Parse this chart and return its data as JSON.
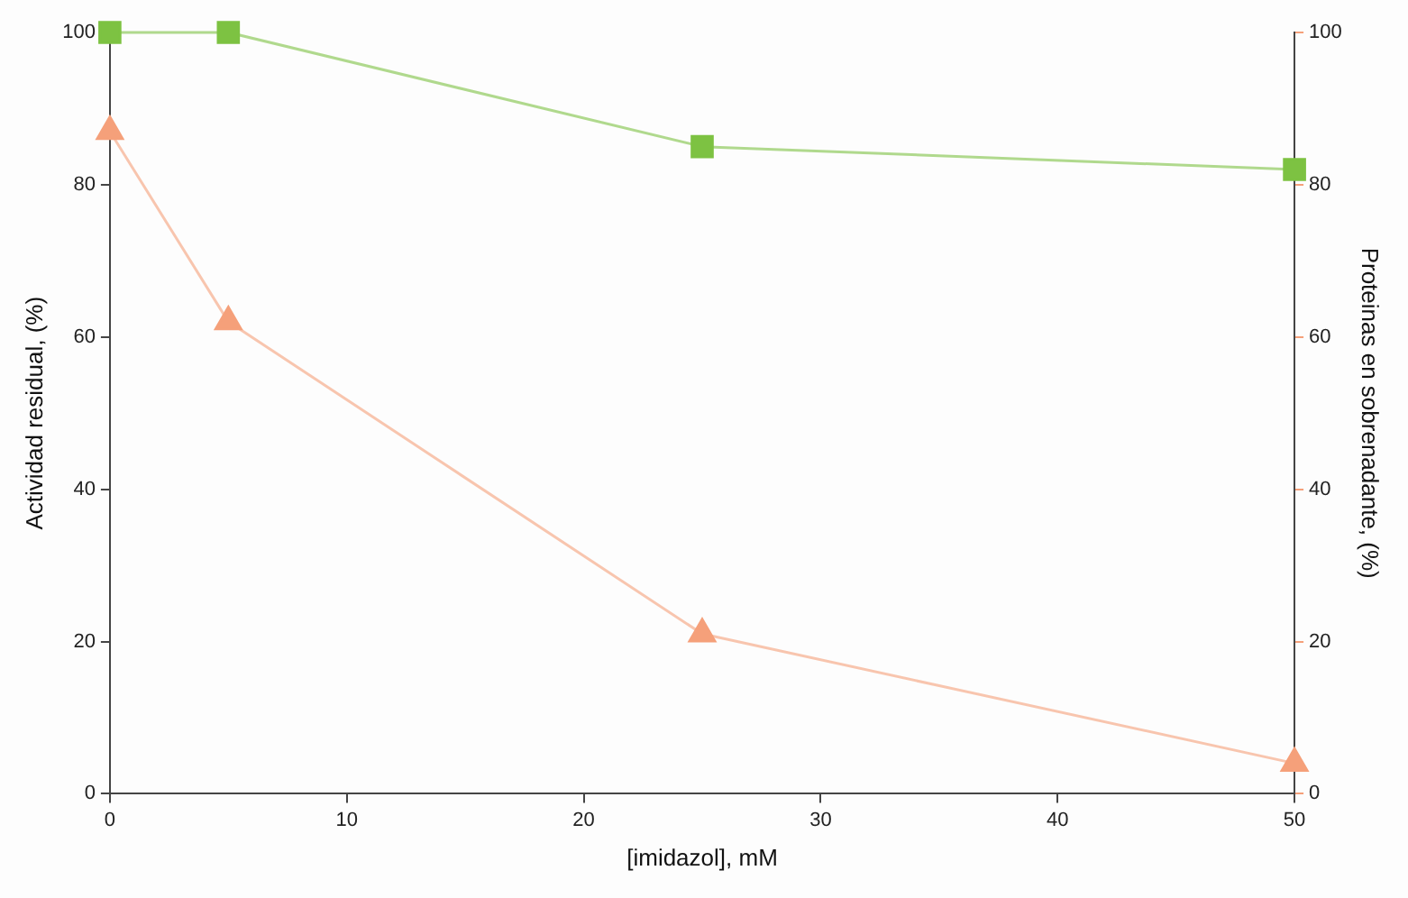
{
  "chart_data": {
    "type": "line",
    "xlabel": "[imidazol], mM",
    "ylabel": "Actividad residual, (%)",
    "y2label": "Proteinas en sobrenadante, (%)",
    "x": [
      0,
      5,
      25,
      50
    ],
    "series": [
      {
        "color": "#7dc242",
        "values": [
          100,
          100,
          85,
          82
        ],
        "marker": "square"
      },
      {
        "color": "#f5a07a",
        "values": [
          87,
          62,
          21,
          4
        ],
        "marker": "triangle",
        "axis": "y2"
      }
    ],
    "xlim": [
      0,
      50
    ],
    "xticks": [
      0,
      10,
      20,
      30,
      40,
      50
    ],
    "ylim": [
      0,
      100
    ],
    "yticks": [
      0,
      20,
      40,
      60,
      80,
      100
    ],
    "y2lim": [
      0,
      100
    ],
    "y2ticks": [
      0,
      20,
      40,
      60,
      80,
      100
    ],
    "grid": false,
    "legend": false,
    "line_style": "solid"
  }
}
